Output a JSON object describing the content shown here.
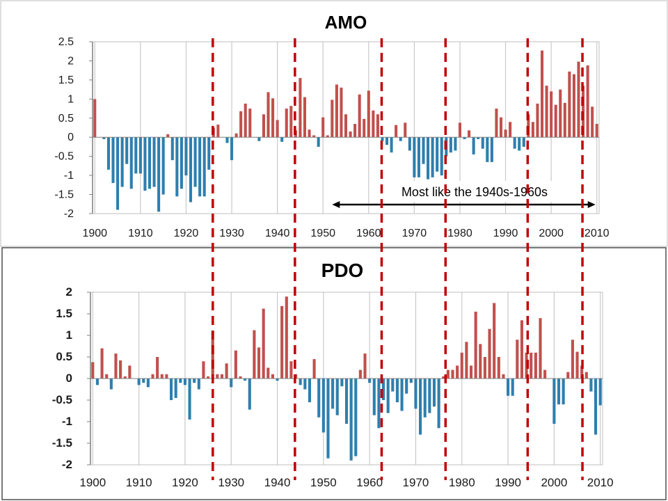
{
  "colors": {
    "positive": "#c0504d",
    "negative": "#2e7fae",
    "dashed_line": "#c00000",
    "grid": "#c9c9c9",
    "axis": "#7f7f7f"
  },
  "dashed_line_years": [
    1926,
    1944,
    1963,
    1977,
    1995,
    2007
  ],
  "chart_data": [
    {
      "type": "bar",
      "title": "AMO",
      "x_tick_labels": [
        "1900",
        "1910",
        "1920",
        "1930",
        "1940",
        "1950",
        "1960",
        "1970",
        "1980",
        "1990",
        "2000",
        "2010"
      ],
      "y_tick_labels": [
        "2.5",
        "2",
        "1.5",
        "1",
        "0.5",
        "0",
        "-0.5",
        "-1",
        "-1.5",
        "-2"
      ],
      "ylim": [
        -2,
        2.5
      ],
      "xlim": [
        1899.5,
        2010.5
      ],
      "annotation": {
        "text": "Most like the 1940s-1960s",
        "arrow_from": 1952,
        "arrow_to": 2010
      },
      "years": [
        1900,
        1901,
        1902,
        1903,
        1904,
        1905,
        1906,
        1907,
        1908,
        1909,
        1910,
        1911,
        1912,
        1913,
        1914,
        1915,
        1916,
        1917,
        1918,
        1919,
        1920,
        1921,
        1922,
        1923,
        1924,
        1925,
        1926,
        1927,
        1928,
        1929,
        1930,
        1931,
        1932,
        1933,
        1934,
        1935,
        1936,
        1937,
        1938,
        1939,
        1940,
        1941,
        1942,
        1943,
        1944,
        1945,
        1946,
        1947,
        1948,
        1949,
        1950,
        1951,
        1952,
        1953,
        1954,
        1955,
        1956,
        1957,
        1958,
        1959,
        1960,
        1961,
        1962,
        1963,
        1964,
        1965,
        1966,
        1967,
        1968,
        1969,
        1970,
        1971,
        1972,
        1973,
        1974,
        1975,
        1976,
        1977,
        1978,
        1979,
        1980,
        1981,
        1982,
        1983,
        1984,
        1985,
        1986,
        1987,
        1988,
        1989,
        1990,
        1991,
        1992,
        1993,
        1994,
        1995,
        1996,
        1997,
        1998,
        1999,
        2000,
        2001,
        2002,
        2003,
        2004,
        2005,
        2006,
        2007,
        2008,
        2009,
        2010
      ],
      "values": [
        1.0,
        0,
        -0.05,
        -0.85,
        -1.2,
        -1.9,
        -1.3,
        -0.7,
        -1.35,
        -0.95,
        -0.95,
        -1.4,
        -1.35,
        -1.3,
        -1.95,
        -1.5,
        0.08,
        -0.6,
        -1.55,
        -1.35,
        -1.0,
        -1.7,
        -1.3,
        -1.55,
        -1.55,
        -0.85,
        0.25,
        0.33,
        0,
        -0.15,
        -0.6,
        0.1,
        0.68,
        0.88,
        0.75,
        0,
        -0.1,
        0.6,
        1.18,
        1.02,
        0.45,
        -0.12,
        0.75,
        0.82,
        0.18,
        1.55,
        1.05,
        0.2,
        0.05,
        -0.25,
        0.52,
        0.05,
        0.98,
        1.38,
        1.3,
        0.6,
        0.15,
        0.35,
        1.12,
        0.48,
        1.22,
        0.7,
        0.6,
        -0.1,
        -0.2,
        -0.4,
        0.32,
        -0.1,
        0.38,
        -0.35,
        -1.05,
        -1.05,
        -0.7,
        -1.1,
        -1.05,
        -0.9,
        -1.0,
        -0.5,
        -0.4,
        -0.35,
        0.38,
        -0.05,
        0.18,
        -0.45,
        -0.05,
        -0.3,
        -0.65,
        -0.65,
        0.75,
        0.52,
        0.2,
        0.4,
        -0.3,
        -0.35,
        -0.25,
        0.6,
        0.4,
        0.88,
        2.27,
        1.35,
        1.2,
        0.85,
        1.25,
        0.9,
        1.72,
        1.65,
        1.98,
        1.35,
        1.88,
        0.8,
        0.35
      ]
    },
    {
      "type": "bar",
      "title": "PDO",
      "x_tick_labels": [
        "1900",
        "1910",
        "1920",
        "1930",
        "1940",
        "1950",
        "1960",
        "1970",
        "1980",
        "1990",
        "2000",
        "2010"
      ],
      "y_tick_labels": [
        "2",
        "1.5",
        "1",
        "0.5",
        "0",
        "-0.5",
        "-1",
        "-1.5",
        "-2"
      ],
      "ylim": [
        -2,
        2
      ],
      "xlim": [
        1899.5,
        2010.5
      ],
      "years": [
        1900,
        1901,
        1902,
        1903,
        1904,
        1905,
        1906,
        1907,
        1908,
        1909,
        1910,
        1911,
        1912,
        1913,
        1914,
        1915,
        1916,
        1917,
        1918,
        1919,
        1920,
        1921,
        1922,
        1923,
        1924,
        1925,
        1926,
        1927,
        1928,
        1929,
        1930,
        1931,
        1932,
        1933,
        1934,
        1935,
        1936,
        1937,
        1938,
        1939,
        1940,
        1941,
        1942,
        1943,
        1944,
        1945,
        1946,
        1947,
        1948,
        1949,
        1950,
        1951,
        1952,
        1953,
        1954,
        1955,
        1956,
        1957,
        1958,
        1959,
        1960,
        1961,
        1962,
        1963,
        1964,
        1965,
        1966,
        1967,
        1968,
        1969,
        1970,
        1971,
        1972,
        1973,
        1974,
        1975,
        1976,
        1977,
        1978,
        1979,
        1980,
        1981,
        1982,
        1983,
        1984,
        1985,
        1986,
        1987,
        1988,
        1989,
        1990,
        1991,
        1992,
        1993,
        1994,
        1995,
        1996,
        1997,
        1998,
        1999,
        2000,
        2001,
        2002,
        2003,
        2004,
        2005,
        2006,
        2007,
        2008,
        2009,
        2010
      ],
      "values": [
        0.38,
        -0.15,
        0.7,
        0.1,
        -0.25,
        0.58,
        0.42,
        0.05,
        0.3,
        0,
        -0.15,
        -0.1,
        -0.2,
        0.1,
        0.5,
        0.1,
        0.1,
        -0.5,
        -0.45,
        -0.1,
        -0.15,
        -0.95,
        -0.1,
        -0.25,
        0.4,
        0.05,
        1.1,
        0.1,
        0.1,
        0.35,
        -0.2,
        0.65,
        0.05,
        -0.05,
        -0.72,
        1.12,
        0.72,
        1.62,
        0.25,
        0.1,
        -0.05,
        1.68,
        1.9,
        0.4,
        0.1,
        -0.15,
        -0.25,
        -0.55,
        0.45,
        -0.9,
        -1.25,
        -1.85,
        -0.7,
        -0.85,
        -0.18,
        -1.05,
        -1.9,
        -1.8,
        0.2,
        0.58,
        -0.1,
        -0.85,
        -1.15,
        -0.5,
        -0.8,
        -0.3,
        -0.55,
        -0.75,
        -0.35,
        -0.1,
        -0.7,
        -1.3,
        -0.9,
        -0.8,
        -0.65,
        -1.15,
        0.05,
        0.2,
        0.2,
        0.3,
        0.6,
        0.85,
        0.3,
        1.55,
        0.8,
        0.5,
        1.15,
        1.75,
        0.5,
        0.1,
        -0.4,
        -0.4,
        0.9,
        1.35,
        0.6,
        0.6,
        0.6,
        1.4,
        0.2,
        0,
        -1.05,
        -0.6,
        -0.6,
        0.15,
        0.9,
        0.62,
        0.3,
        0.15,
        -0.3,
        -1.3,
        -0.62
      ]
    }
  ]
}
